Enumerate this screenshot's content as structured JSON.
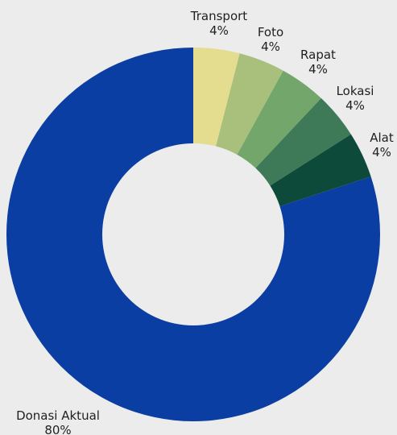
{
  "chart_data": {
    "type": "pie",
    "variant": "donut",
    "title": "",
    "categories": [
      "Donasi Aktual",
      "Transport",
      "Foto",
      "Rapat",
      "Lokasi",
      "Alat"
    ],
    "values": [
      80,
      4,
      4,
      4,
      4,
      4
    ],
    "value_labels": [
      "80%",
      "4%",
      "4%",
      "4%",
      "4%",
      "4%"
    ],
    "colors": [
      "#0b3ea3",
      "#e4dc8e",
      "#a9c07d",
      "#73a66a",
      "#3f7a58",
      "#0d4a39"
    ],
    "legend": "none",
    "background": "#ececec"
  }
}
